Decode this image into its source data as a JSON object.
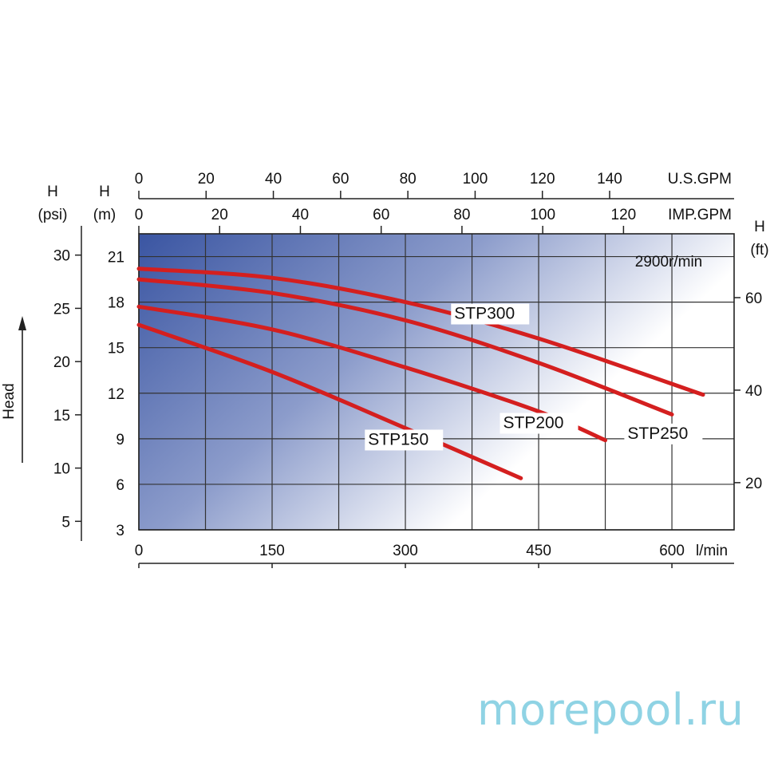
{
  "chart_data": {
    "type": "line",
    "speed_label": "2900r/min",
    "x_axis": {
      "unit_label": "l/min",
      "ticks": [
        0,
        150,
        300,
        450,
        600
      ],
      "range": [
        0,
        670
      ]
    },
    "top_axes": [
      {
        "unit_label": "U.S.GPM",
        "ticks": [
          0,
          20,
          40,
          60,
          80,
          100,
          120,
          140
        ],
        "factor": 3.785
      },
      {
        "unit_label": "IMP.GPM",
        "ticks": [
          0,
          20,
          40,
          60,
          80,
          100,
          120
        ],
        "factor": 4.546
      }
    ],
    "y_axis_m": {
      "label": "H",
      "unit": "(m)",
      "ticks": [
        3,
        6,
        9,
        12,
        15,
        18,
        21
      ],
      "range": [
        3,
        22.5
      ]
    },
    "y_axis_psi": {
      "label": "H",
      "unit": "(psi)",
      "ticks": [
        5,
        10,
        15,
        20,
        25,
        30
      ],
      "range": [
        4.2,
        32.0
      ]
    },
    "y_axis_ft": {
      "label": "H",
      "unit": "(ft)",
      "ticks": [
        20,
        40,
        60
      ],
      "range": [
        9.8,
        73.8
      ]
    },
    "head_label": "Head",
    "series": [
      {
        "name": "STP300",
        "x": [
          0,
          150,
          300,
          450,
          635
        ],
        "y": [
          20.2,
          19.6,
          18.0,
          15.6,
          11.9
        ],
        "label_at": [
          355,
          16.9
        ]
      },
      {
        "name": "STP250",
        "x": [
          0,
          150,
          300,
          450,
          600
        ],
        "y": [
          19.5,
          18.6,
          16.8,
          14.0,
          10.6
        ],
        "label_at": [
          550,
          9.0
        ]
      },
      {
        "name": "STP200",
        "x": [
          0,
          150,
          300,
          450,
          525
        ],
        "y": [
          17.7,
          16.2,
          13.7,
          10.8,
          8.9
        ],
        "label_at": [
          410,
          9.7
        ]
      },
      {
        "name": "STP150",
        "x": [
          0,
          150,
          300,
          430
        ],
        "y": [
          16.5,
          13.4,
          9.7,
          6.4
        ],
        "label_at": [
          258,
          8.6
        ]
      }
    ],
    "colors": {
      "curve": "#d41f1f",
      "gradient_start": "#3a55a2",
      "gradient_end": "#ffffff",
      "grid": "#333333"
    }
  },
  "watermark": "morepool.ru"
}
